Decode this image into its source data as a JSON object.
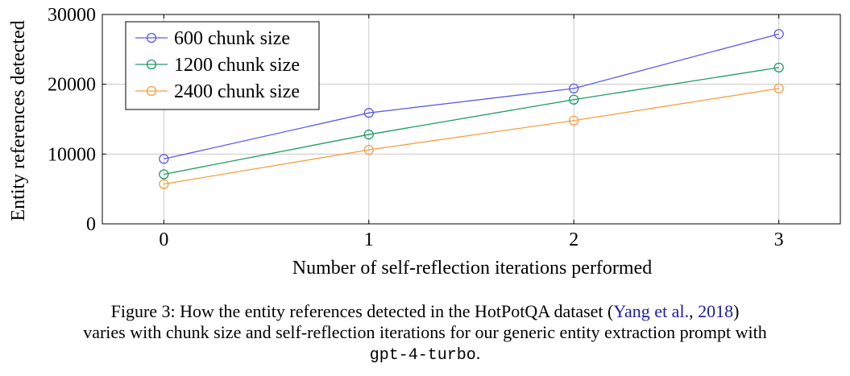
{
  "chart_data": {
    "type": "line",
    "xlabel": "Number of self-reflection iterations performed",
    "ylabel": "Entity references detected",
    "x": [
      0,
      1,
      2,
      3
    ],
    "x_ticks": [
      "0",
      "1",
      "2",
      "3"
    ],
    "y_ticks": [
      "0",
      "10000",
      "20000",
      "30000"
    ],
    "xlim": [
      -0.3,
      3.3
    ],
    "ylim": [
      0,
      30000
    ],
    "grid": true,
    "legend_position": "top-left",
    "marker": "circle",
    "series": [
      {
        "name": "600 chunk size",
        "color": "#5a5ae6",
        "values": [
          9300,
          15900,
          19400,
          27200
        ]
      },
      {
        "name": "1200 chunk size",
        "color": "#1f9a64",
        "values": [
          7100,
          12800,
          17800,
          22400
        ]
      },
      {
        "name": "2400 chunk size",
        "color": "#f4a042",
        "values": [
          5700,
          10600,
          14800,
          19400
        ]
      }
    ]
  },
  "caption": {
    "line1_prefix": "Figure 3: How the entity references detected in the HotPotQA dataset (",
    "citation_authors": "Yang et al.",
    "citation_sep": ", ",
    "citation_year": "2018",
    "line1_suffix": ")",
    "line2": "varies with chunk size and self-reflection iterations for our generic entity extraction prompt with",
    "line3_code": "gpt-4-turbo",
    "line3_suffix": "."
  }
}
